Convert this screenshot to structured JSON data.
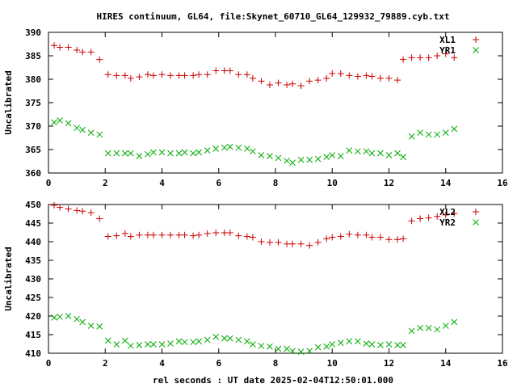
{
  "title": "HIRES continuum, GL64, file:Skynet_60710_GL64_129932_79889.cyb.txt",
  "xlabel": "rel seconds : UT date 2025-02-04T12:50:01.000",
  "chart_data": [
    {
      "type": "scatter",
      "ylabel": "Uncalibrated",
      "xlim": [
        0,
        16
      ],
      "ylim": [
        360,
        390
      ],
      "xticks": [
        "0",
        "2",
        "4",
        "6",
        "8",
        "10",
        "12",
        "14",
        "16"
      ],
      "yticks": [
        "360",
        "365",
        "370",
        "375",
        "380",
        "385",
        "390"
      ],
      "legend_position": "top-right",
      "grid": false,
      "series": [
        {
          "name": "XL1",
          "marker": "+",
          "color": "#cc0000",
          "x": [
            0.2,
            0.4,
            0.7,
            1.0,
            1.2,
            1.5,
            1.8,
            2.1,
            2.4,
            2.7,
            2.9,
            3.2,
            3.5,
            3.7,
            4.0,
            4.3,
            4.6,
            4.8,
            5.1,
            5.3,
            5.6,
            5.9,
            6.2,
            6.4,
            6.7,
            7.0,
            7.2,
            7.5,
            7.8,
            8.1,
            8.4,
            8.6,
            8.9,
            9.2,
            9.5,
            9.8,
            10.0,
            10.3,
            10.6,
            10.9,
            11.2,
            11.4,
            11.7,
            12.0,
            12.3,
            12.5,
            12.8,
            13.1,
            13.4,
            13.7,
            14.0,
            14.3
          ],
          "y": [
            387.2,
            386.8,
            386.8,
            386.2,
            385.8,
            385.8,
            384.2,
            381.0,
            380.8,
            380.8,
            380.2,
            380.5,
            381.0,
            380.8,
            381.0,
            380.8,
            380.8,
            380.8,
            380.8,
            381.0,
            381.0,
            381.8,
            381.8,
            381.8,
            381.0,
            381.0,
            380.2,
            379.6,
            378.8,
            379.2,
            378.8,
            379.0,
            378.6,
            379.6,
            379.8,
            380.2,
            381.2,
            381.2,
            380.8,
            380.6,
            380.8,
            380.6,
            380.2,
            380.2,
            379.8,
            384.2,
            384.6,
            384.6,
            384.6,
            385.0,
            385.4,
            384.6
          ]
        },
        {
          "name": "YR1",
          "marker": "x",
          "color": "#00aa00",
          "x": [
            0.2,
            0.4,
            0.7,
            1.0,
            1.2,
            1.5,
            1.8,
            2.1,
            2.4,
            2.7,
            2.9,
            3.2,
            3.5,
            3.7,
            4.0,
            4.3,
            4.6,
            4.8,
            5.1,
            5.3,
            5.6,
            5.9,
            6.2,
            6.4,
            6.7,
            7.0,
            7.2,
            7.5,
            7.8,
            8.1,
            8.4,
            8.6,
            8.9,
            9.2,
            9.5,
            9.8,
            10.0,
            10.3,
            10.6,
            10.9,
            11.2,
            11.4,
            11.7,
            12.0,
            12.3,
            12.5,
            12.8,
            13.1,
            13.4,
            13.7,
            14.0,
            14.3
          ],
          "y": [
            370.8,
            371.2,
            370.6,
            369.6,
            369.2,
            368.6,
            368.2,
            364.2,
            364.2,
            364.2,
            364.2,
            363.6,
            364.0,
            364.4,
            364.4,
            364.2,
            364.2,
            364.4,
            364.2,
            364.4,
            364.8,
            365.2,
            365.4,
            365.6,
            365.4,
            365.2,
            364.6,
            363.8,
            363.6,
            363.2,
            362.6,
            362.2,
            362.8,
            362.8,
            363.0,
            363.4,
            363.8,
            363.6,
            364.8,
            364.6,
            364.6,
            364.2,
            364.2,
            363.8,
            364.2,
            363.4,
            367.8,
            368.6,
            368.2,
            368.2,
            368.6,
            369.4
          ]
        }
      ]
    },
    {
      "type": "scatter",
      "ylabel": "Uncalibrated",
      "xlim": [
        0,
        16
      ],
      "ylim": [
        410,
        450
      ],
      "xticks": [
        "0",
        "2",
        "4",
        "6",
        "8",
        "10",
        "12",
        "14",
        "16"
      ],
      "yticks": [
        "410",
        "415",
        "420",
        "425",
        "430",
        "435",
        "440",
        "445",
        "450"
      ],
      "legend_position": "top-right",
      "grid": false,
      "series": [
        {
          "name": "XL2",
          "marker": "+",
          "color": "#cc0000",
          "x": [
            0.2,
            0.4,
            0.7,
            1.0,
            1.2,
            1.5,
            1.8,
            2.1,
            2.4,
            2.7,
            2.9,
            3.2,
            3.5,
            3.7,
            4.0,
            4.3,
            4.6,
            4.8,
            5.1,
            5.3,
            5.6,
            5.9,
            6.2,
            6.4,
            6.7,
            7.0,
            7.2,
            7.5,
            7.8,
            8.1,
            8.4,
            8.6,
            8.9,
            9.2,
            9.5,
            9.8,
            10.0,
            10.3,
            10.6,
            10.9,
            11.2,
            11.4,
            11.7,
            12.0,
            12.3,
            12.5,
            12.8,
            13.1,
            13.4,
            13.7,
            14.0,
            14.3
          ],
          "y": [
            449.8,
            449.2,
            448.8,
            448.4,
            448.2,
            447.8,
            446.2,
            441.4,
            441.6,
            442.2,
            441.4,
            441.8,
            441.8,
            441.8,
            441.8,
            441.8,
            441.8,
            441.8,
            441.6,
            441.8,
            442.2,
            442.4,
            442.4,
            442.4,
            441.6,
            441.4,
            441.2,
            440.0,
            439.8,
            439.8,
            439.4,
            439.4,
            439.4,
            439.0,
            439.8,
            440.8,
            441.2,
            441.4,
            442.0,
            441.8,
            441.8,
            441.2,
            441.2,
            440.6,
            440.6,
            440.8,
            445.6,
            446.2,
            446.4,
            446.8,
            447.2,
            447.6
          ]
        },
        {
          "name": "YR2",
          "marker": "x",
          "color": "#00aa00",
          "x": [
            0.2,
            0.4,
            0.7,
            1.0,
            1.2,
            1.5,
            1.8,
            2.1,
            2.4,
            2.7,
            2.9,
            3.2,
            3.5,
            3.7,
            4.0,
            4.3,
            4.6,
            4.8,
            5.1,
            5.3,
            5.6,
            5.9,
            6.2,
            6.4,
            6.7,
            7.0,
            7.2,
            7.5,
            7.8,
            8.1,
            8.4,
            8.6,
            8.9,
            9.2,
            9.5,
            9.8,
            10.0,
            10.3,
            10.6,
            10.9,
            11.2,
            11.4,
            11.7,
            12.0,
            12.3,
            12.5,
            12.8,
            13.1,
            13.4,
            13.7,
            14.0,
            14.3
          ],
          "y": [
            419.6,
            419.8,
            420.0,
            419.2,
            418.4,
            417.4,
            417.2,
            413.4,
            412.4,
            413.4,
            412.0,
            412.2,
            412.4,
            412.4,
            412.4,
            412.6,
            413.2,
            413.0,
            413.0,
            413.2,
            413.6,
            414.4,
            414.0,
            414.0,
            413.6,
            413.2,
            412.4,
            412.0,
            411.8,
            411.2,
            411.2,
            410.6,
            410.4,
            410.6,
            411.6,
            411.8,
            412.4,
            412.8,
            413.2,
            413.2,
            412.6,
            412.4,
            412.2,
            412.4,
            412.2,
            412.2,
            416.0,
            416.8,
            416.8,
            416.4,
            417.4,
            418.4
          ]
        }
      ]
    }
  ]
}
